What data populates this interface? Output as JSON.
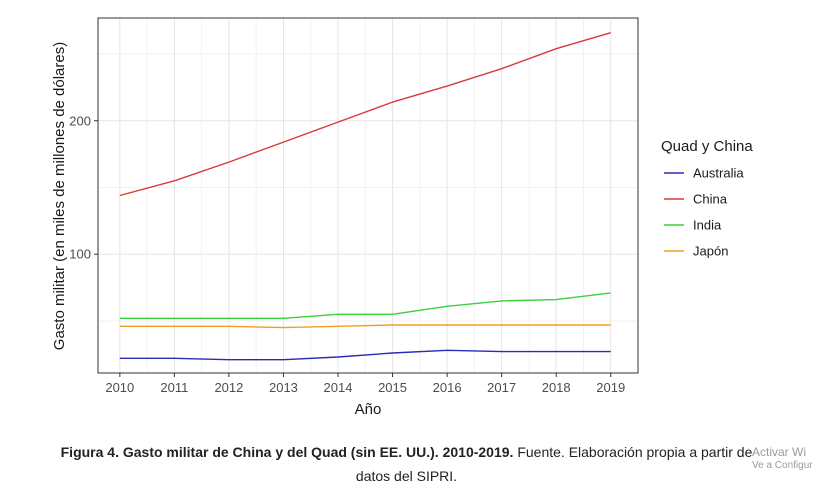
{
  "chart_data": {
    "type": "line",
    "xlabel": "Año",
    "ylabel": "Gasto militar (en miles de millones de dólares)",
    "x": [
      2010,
      2011,
      2012,
      2013,
      2014,
      2015,
      2016,
      2017,
      2018,
      2019
    ],
    "xlim": [
      2009.6,
      2019.5
    ],
    "ylim": [
      11,
      277
    ],
    "yticks": [
      100,
      200
    ],
    "grid": true,
    "legend": {
      "title": "Quad y China",
      "position": "right"
    },
    "series": [
      {
        "name": "Australia",
        "color": "#2b2bb5",
        "values": [
          22,
          22,
          21,
          21,
          23,
          26,
          28,
          27,
          27,
          27
        ]
      },
      {
        "name": "China",
        "color": "#d83a3a",
        "values": [
          144,
          155,
          169,
          184,
          199,
          214,
          226,
          239,
          254,
          266
        ]
      },
      {
        "name": "India",
        "color": "#3ad23a",
        "values": [
          52,
          52,
          52,
          52,
          55,
          55,
          61,
          65,
          66,
          71
        ]
      },
      {
        "name": "Japón",
        "color": "#f0a020",
        "values": [
          46,
          46,
          46,
          45,
          46,
          47,
          47,
          47,
          47,
          47
        ]
      }
    ]
  },
  "caption": {
    "bold": "Figura 4. Gasto militar de China y del Quad (sin EE. UU.). 2010-2019.",
    "normal": " Fuente. Elaboración propia a partir de",
    "line2": "datos del SIPRI."
  },
  "watermark": {
    "line1": "Activar Wi",
    "line2": "Ve a Configur"
  }
}
